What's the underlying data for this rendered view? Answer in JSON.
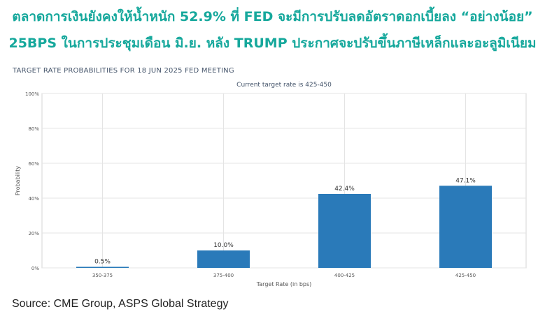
{
  "headline": {
    "line1": "ตลาดการเงินยังคงให้น้ำหนัก 52.9% ที่ FED จะมีการปรับลดอัตราดอกเบี้ยลง “อย่างน้อย”",
    "line2": "25BPS ในการประชุมเดือน มิ.ย. หลัง TRUMP ประกาศจะปรับขึ้นภาษีเหล็กและอะลูมิเนียม"
  },
  "source": "Source: CME Group, ASPS Global Strategy",
  "colors": {
    "headline": "#16a89c",
    "bar": "#2a7ab9"
  },
  "chart_data": {
    "type": "bar",
    "title": "TARGET RATE PROBABILITIES FOR 18 JUN 2025 FED MEETING",
    "subtitle": "Current target rate is 425-450",
    "xlabel": "Target Rate (in bps)",
    "ylabel": "Probability",
    "categories": [
      "350-375",
      "375-400",
      "400-425",
      "425-450"
    ],
    "values": [
      0.5,
      10.0,
      42.4,
      47.1
    ],
    "value_labels": [
      "0.5%",
      "10.0%",
      "42.4%",
      "47.1%"
    ],
    "ylim": [
      0,
      100
    ],
    "yticks": [
      "0%",
      "20%",
      "40%",
      "60%",
      "80%",
      "100%"
    ],
    "grid": true
  }
}
